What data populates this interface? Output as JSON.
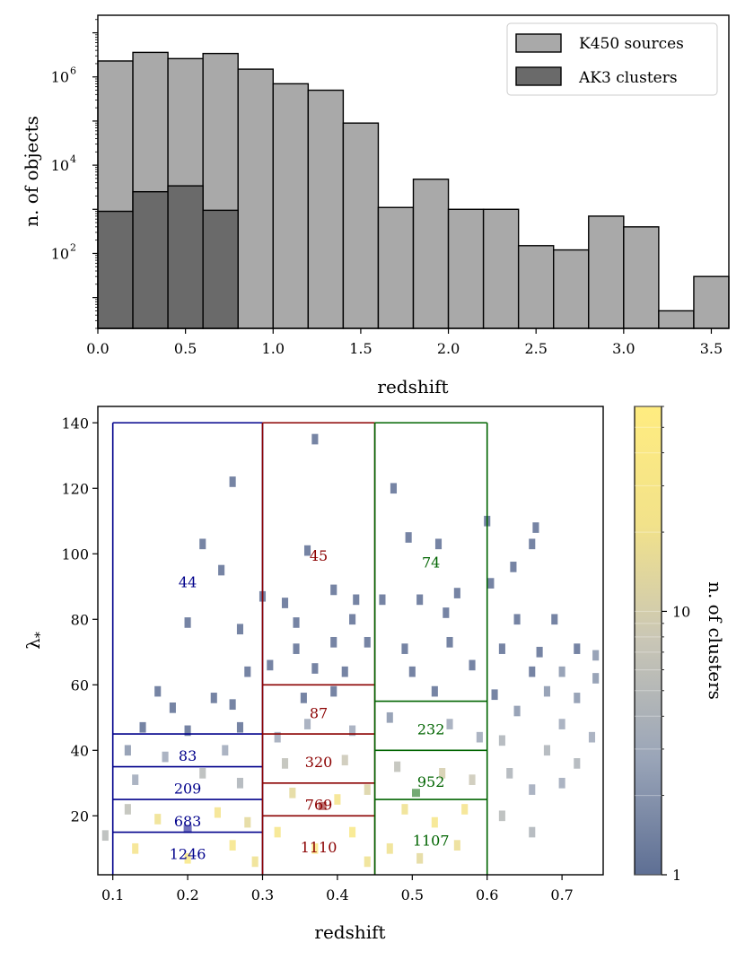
{
  "chart_data": [
    {
      "type": "bar",
      "panel": "top",
      "xlabel": "redshift",
      "ylabel": "n. of objects",
      "xlim": [
        0.0,
        3.6
      ],
      "ylim": [
        2.0,
        25000000
      ],
      "yscale": "log",
      "xticks": [
        0.0,
        0.5,
        1.0,
        1.5,
        2.0,
        2.5,
        3.0,
        3.5
      ],
      "xtick_labels": [
        "0.0",
        "0.5",
        "1.0",
        "1.5",
        "2.0",
        "2.5",
        "3.0",
        "3.5"
      ],
      "yticks": [
        100,
        10000,
        1000000
      ],
      "ytick_labels": [
        "10",
        "10",
        "10"
      ],
      "ytick_exponents": [
        "2",
        "4",
        "6"
      ],
      "bin_edges": [
        0.0,
        0.2,
        0.4,
        0.6,
        0.8,
        1.0,
        1.2,
        1.4,
        1.6,
        1.8,
        2.0,
        2.2,
        2.4,
        2.6,
        2.8,
        3.0,
        3.2,
        3.4,
        3.6
      ],
      "series": [
        {
          "name": "K450 sources",
          "color": "#a9a9a9",
          "values": [
            2300000,
            3600000,
            2600000,
            3400000,
            1500000,
            700000,
            500000,
            90000,
            1100,
            4800,
            1000,
            1000,
            150,
            120,
            700,
            400,
            5,
            30
          ]
        },
        {
          "name": "AK3 clusters",
          "color": "#6a6a6a",
          "values": [
            900,
            2500,
            3400,
            950
          ]
        }
      ],
      "legend_position": "top-right"
    },
    {
      "type": "heatmap",
      "panel": "bottom",
      "xlabel": "redshift",
      "ylabel": "λ",
      "ylabel_subscript": "*",
      "xlim": [
        0.08,
        0.755
      ],
      "ylim": [
        2,
        145
      ],
      "xticks": [
        0.1,
        0.2,
        0.3,
        0.4,
        0.5,
        0.6,
        0.7
      ],
      "xtick_labels": [
        "0.1",
        "0.2",
        "0.3",
        "0.4",
        "0.5",
        "0.6",
        "0.7"
      ],
      "yticks": [
        20,
        40,
        60,
        80,
        100,
        120,
        140
      ],
      "ytick_labels": [
        "20",
        "40",
        "60",
        "80",
        "100",
        "120",
        "140"
      ],
      "colorbar": {
        "label": "n. of clusters",
        "scale": "log",
        "ticks": [
          1,
          10
        ],
        "tick_labels": [
          "1",
          "10"
        ],
        "range": [
          1,
          60
        ],
        "colors": [
          "#5e6f94",
          "#9aa5b8",
          "#c9c6b6",
          "#f2e28a",
          "#ffec80"
        ]
      },
      "regions": [
        {
          "color": "#00008b",
          "z": [
            0.1,
            0.3
          ],
          "lambda_edges": [
            0,
            15,
            25,
            35,
            45,
            140
          ],
          "counts": [
            {
              "value": "1246",
              "z": 0.2,
              "lambda": 8.5
            },
            {
              "value": "683",
              "z": 0.2,
              "lambda": 18.5
            },
            {
              "value": "209",
              "z": 0.2,
              "lambda": 28.5
            },
            {
              "value": "83",
              "z": 0.2,
              "lambda": 38.5
            },
            {
              "value": "44",
              "z": 0.2,
              "lambda": 91.5
            }
          ]
        },
        {
          "color": "#8b0000",
          "z": [
            0.3,
            0.45
          ],
          "lambda_edges": [
            0,
            20,
            30,
            45,
            60,
            140
          ],
          "counts": [
            {
              "value": "1110",
              "z": 0.375,
              "lambda": 10.5
            },
            {
              "value": "769",
              "z": 0.375,
              "lambda": 23.5
            },
            {
              "value": "320",
              "z": 0.375,
              "lambda": 36.5
            },
            {
              "value": "87",
              "z": 0.375,
              "lambda": 51.5
            },
            {
              "value": "45",
              "z": 0.375,
              "lambda": 99.5
            }
          ]
        },
        {
          "color": "#006400",
          "z": [
            0.45,
            0.6
          ],
          "lambda_edges": [
            0,
            25,
            40,
            55,
            140
          ],
          "counts": [
            {
              "value": "1107",
              "z": 0.525,
              "lambda": 12.5
            },
            {
              "value": "952",
              "z": 0.525,
              "lambda": 30.5
            },
            {
              "value": "232",
              "z": 0.525,
              "lambda": 46.5
            },
            {
              "value": "74",
              "z": 0.525,
              "lambda": 97.5
            }
          ]
        }
      ],
      "markers": [
        {
          "z": 0.2,
          "lambda": 16,
          "color": "#00008b"
        },
        {
          "z": 0.38,
          "lambda": 23,
          "color": "#8b0000"
        },
        {
          "z": 0.505,
          "lambda": 27,
          "color": "#006400"
        }
      ],
      "cells_approx": [
        {
          "z": 0.26,
          "lambda": 122,
          "n": 1
        },
        {
          "z": 0.37,
          "lambda": 135,
          "n": 1
        },
        {
          "z": 0.475,
          "lambda": 120,
          "n": 1
        },
        {
          "z": 0.22,
          "lambda": 103,
          "n": 1
        },
        {
          "z": 0.245,
          "lambda": 95,
          "n": 1
        },
        {
          "z": 0.36,
          "lambda": 101,
          "n": 1
        },
        {
          "z": 0.495,
          "lambda": 105,
          "n": 1
        },
        {
          "z": 0.535,
          "lambda": 103,
          "n": 1
        },
        {
          "z": 0.6,
          "lambda": 110,
          "n": 1
        },
        {
          "z": 0.66,
          "lambda": 103,
          "n": 1
        },
        {
          "z": 0.665,
          "lambda": 108,
          "n": 1
        },
        {
          "z": 0.635,
          "lambda": 96,
          "n": 1
        },
        {
          "z": 0.3,
          "lambda": 87,
          "n": 1
        },
        {
          "z": 0.33,
          "lambda": 85,
          "n": 1
        },
        {
          "z": 0.395,
          "lambda": 89,
          "n": 1
        },
        {
          "z": 0.425,
          "lambda": 86,
          "n": 1
        },
        {
          "z": 0.46,
          "lambda": 86,
          "n": 1
        },
        {
          "z": 0.51,
          "lambda": 86,
          "n": 1
        },
        {
          "z": 0.56,
          "lambda": 88,
          "n": 1
        },
        {
          "z": 0.605,
          "lambda": 91,
          "n": 1
        },
        {
          "z": 0.545,
          "lambda": 82,
          "n": 1
        },
        {
          "z": 0.2,
          "lambda": 79,
          "n": 1
        },
        {
          "z": 0.27,
          "lambda": 77,
          "n": 1
        },
        {
          "z": 0.345,
          "lambda": 79,
          "n": 1
        },
        {
          "z": 0.42,
          "lambda": 80,
          "n": 1
        },
        {
          "z": 0.64,
          "lambda": 80,
          "n": 1
        },
        {
          "z": 0.69,
          "lambda": 80,
          "n": 1
        },
        {
          "z": 0.345,
          "lambda": 71,
          "n": 1
        },
        {
          "z": 0.395,
          "lambda": 73,
          "n": 1
        },
        {
          "z": 0.44,
          "lambda": 73,
          "n": 1
        },
        {
          "z": 0.49,
          "lambda": 71,
          "n": 1
        },
        {
          "z": 0.55,
          "lambda": 73,
          "n": 1
        },
        {
          "z": 0.62,
          "lambda": 71,
          "n": 1
        },
        {
          "z": 0.67,
          "lambda": 70,
          "n": 1
        },
        {
          "z": 0.72,
          "lambda": 71,
          "n": 1
        },
        {
          "z": 0.745,
          "lambda": 69,
          "n": 2
        },
        {
          "z": 0.28,
          "lambda": 64,
          "n": 1
        },
        {
          "z": 0.31,
          "lambda": 66,
          "n": 1
        },
        {
          "z": 0.37,
          "lambda": 65,
          "n": 1
        },
        {
          "z": 0.41,
          "lambda": 64,
          "n": 1
        },
        {
          "z": 0.5,
          "lambda": 64,
          "n": 1
        },
        {
          "z": 0.58,
          "lambda": 66,
          "n": 1
        },
        {
          "z": 0.66,
          "lambda": 64,
          "n": 1
        },
        {
          "z": 0.7,
          "lambda": 64,
          "n": 2
        },
        {
          "z": 0.745,
          "lambda": 62,
          "n": 2
        },
        {
          "z": 0.16,
          "lambda": 58,
          "n": 1
        },
        {
          "z": 0.18,
          "lambda": 53,
          "n": 1
        },
        {
          "z": 0.235,
          "lambda": 56,
          "n": 1
        },
        {
          "z": 0.26,
          "lambda": 54,
          "n": 1
        },
        {
          "z": 0.355,
          "lambda": 56,
          "n": 1
        },
        {
          "z": 0.395,
          "lambda": 58,
          "n": 1
        },
        {
          "z": 0.53,
          "lambda": 58,
          "n": 1
        },
        {
          "z": 0.61,
          "lambda": 57,
          "n": 1
        },
        {
          "z": 0.68,
          "lambda": 58,
          "n": 2
        },
        {
          "z": 0.72,
          "lambda": 56,
          "n": 2
        },
        {
          "z": 0.64,
          "lambda": 52,
          "n": 2
        },
        {
          "z": 0.7,
          "lambda": 48,
          "n": 3
        },
        {
          "z": 0.74,
          "lambda": 44,
          "n": 3
        },
        {
          "z": 0.68,
          "lambda": 40,
          "n": 4
        },
        {
          "z": 0.72,
          "lambda": 36,
          "n": 4
        },
        {
          "z": 0.63,
          "lambda": 33,
          "n": 4
        },
        {
          "z": 0.66,
          "lambda": 28,
          "n": 3
        },
        {
          "z": 0.7,
          "lambda": 30,
          "n": 3
        },
        {
          "z": 0.14,
          "lambda": 47,
          "n": 1
        },
        {
          "z": 0.2,
          "lambda": 46,
          "n": 1
        },
        {
          "z": 0.27,
          "lambda": 47,
          "n": 1
        },
        {
          "z": 0.12,
          "lambda": 40,
          "n": 2
        },
        {
          "z": 0.17,
          "lambda": 38,
          "n": 3
        },
        {
          "z": 0.25,
          "lambda": 40,
          "n": 3
        },
        {
          "z": 0.13,
          "lambda": 31,
          "n": 3
        },
        {
          "z": 0.22,
          "lambda": 33,
          "n": 5
        },
        {
          "z": 0.27,
          "lambda": 30,
          "n": 4
        },
        {
          "z": 0.12,
          "lambda": 22,
          "n": 6
        },
        {
          "z": 0.16,
          "lambda": 19,
          "n": 20
        },
        {
          "z": 0.24,
          "lambda": 21,
          "n": 25
        },
        {
          "z": 0.28,
          "lambda": 18,
          "n": 15
        },
        {
          "z": 0.13,
          "lambda": 10,
          "n": 25
        },
        {
          "z": 0.2,
          "lambda": 7,
          "n": 35
        },
        {
          "z": 0.26,
          "lambda": 11,
          "n": 30
        },
        {
          "z": 0.29,
          "lambda": 6,
          "n": 20
        },
        {
          "z": 0.09,
          "lambda": 14,
          "n": 5
        },
        {
          "z": 0.32,
          "lambda": 44,
          "n": 3
        },
        {
          "z": 0.36,
          "lambda": 48,
          "n": 3
        },
        {
          "z": 0.42,
          "lambda": 46,
          "n": 3
        },
        {
          "z": 0.33,
          "lambda": 36,
          "n": 6
        },
        {
          "z": 0.41,
          "lambda": 37,
          "n": 8
        },
        {
          "z": 0.34,
          "lambda": 27,
          "n": 15
        },
        {
          "z": 0.4,
          "lambda": 25,
          "n": 25
        },
        {
          "z": 0.44,
          "lambda": 28,
          "n": 12
        },
        {
          "z": 0.32,
          "lambda": 15,
          "n": 30
        },
        {
          "z": 0.37,
          "lambda": 10,
          "n": 40
        },
        {
          "z": 0.42,
          "lambda": 15,
          "n": 35
        },
        {
          "z": 0.44,
          "lambda": 6,
          "n": 20
        },
        {
          "z": 0.47,
          "lambda": 50,
          "n": 2
        },
        {
          "z": 0.55,
          "lambda": 48,
          "n": 3
        },
        {
          "z": 0.59,
          "lambda": 44,
          "n": 3
        },
        {
          "z": 0.48,
          "lambda": 35,
          "n": 6
        },
        {
          "z": 0.54,
          "lambda": 33,
          "n": 10
        },
        {
          "z": 0.58,
          "lambda": 31,
          "n": 8
        },
        {
          "z": 0.49,
          "lambda": 22,
          "n": 20
        },
        {
          "z": 0.53,
          "lambda": 18,
          "n": 30
        },
        {
          "z": 0.57,
          "lambda": 22,
          "n": 25
        },
        {
          "z": 0.47,
          "lambda": 10,
          "n": 20
        },
        {
          "z": 0.51,
          "lambda": 7,
          "n": 15
        },
        {
          "z": 0.56,
          "lambda": 11,
          "n": 18
        },
        {
          "z": 0.62,
          "lambda": 20,
          "n": 5
        },
        {
          "z": 0.66,
          "lambda": 15,
          "n": 4
        },
        {
          "z": 0.62,
          "lambda": 43,
          "n": 4
        }
      ]
    }
  ]
}
